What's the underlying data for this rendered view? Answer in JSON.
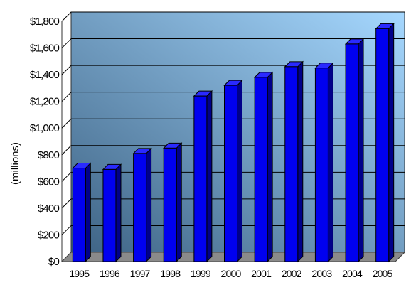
{
  "chart_data": {
    "type": "bar",
    "title": "",
    "xlabel": "",
    "ylabel": "(millions)",
    "ylim": [
      0,
      1800
    ],
    "y_tick_values": [
      0,
      200,
      400,
      600,
      800,
      1000,
      1200,
      1400,
      1600,
      1800
    ],
    "y_tick_labels": [
      "$0",
      "$200",
      "$400",
      "$600",
      "$800",
      "$1,000",
      "$1,200",
      "$1,400",
      "$1,600",
      "$1,800"
    ],
    "categories": [
      "1995",
      "1996",
      "1997",
      "1998",
      "1999",
      "2000",
      "2001",
      "2002",
      "2003",
      "2004",
      "2005"
    ],
    "values": [
      700,
      690,
      810,
      850,
      1240,
      1320,
      1380,
      1460,
      1450,
      1630,
      1745
    ],
    "grid": true,
    "legend": "none",
    "colors": {
      "bar_front": "#0000f0",
      "bar_side": "#00008a",
      "bar_top": "#2a2aff",
      "wall_top": "#a6d8ff",
      "wall_bottom": "#3a5f80",
      "floor": "#8a8a8a",
      "gridline": "#000000"
    }
  }
}
